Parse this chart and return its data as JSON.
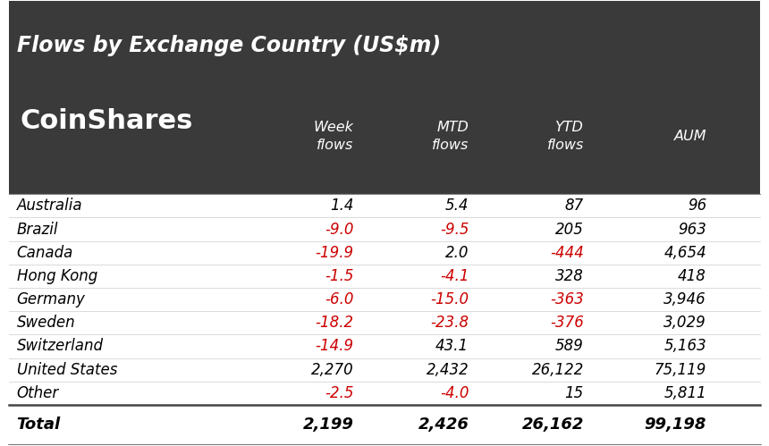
{
  "title": "Flows by Exchange Country (US$m)",
  "logo_text": "CoinShares",
  "header_bg": "#3a3a3a",
  "header_text_color": "#ffffff",
  "body_bg": "#ffffff",
  "body_text_color": "#000000",
  "negative_color": "#cc0000",
  "rows": [
    {
      "country": "Australia",
      "week": "1.4",
      "mtd": "5.4",
      "ytd": "87",
      "aum": "96",
      "week_neg": false,
      "mtd_neg": false,
      "ytd_neg": false
    },
    {
      "country": "Brazil",
      "week": "-9.0",
      "mtd": "-9.5",
      "ytd": "205",
      "aum": "963",
      "week_neg": true,
      "mtd_neg": true,
      "ytd_neg": false
    },
    {
      "country": "Canada",
      "week": "-19.9",
      "mtd": "2.0",
      "ytd": "-444",
      "aum": "4,654",
      "week_neg": true,
      "mtd_neg": false,
      "ytd_neg": true
    },
    {
      "country": "Hong Kong",
      "week": "-1.5",
      "mtd": "-4.1",
      "ytd": "328",
      "aum": "418",
      "week_neg": true,
      "mtd_neg": true,
      "ytd_neg": false
    },
    {
      "country": "Germany",
      "week": "-6.0",
      "mtd": "-15.0",
      "ytd": "-363",
      "aum": "3,946",
      "week_neg": true,
      "mtd_neg": true,
      "ytd_neg": true
    },
    {
      "country": "Sweden",
      "week": "-18.2",
      "mtd": "-23.8",
      "ytd": "-376",
      "aum": "3,029",
      "week_neg": true,
      "mtd_neg": true,
      "ytd_neg": true
    },
    {
      "country": "Switzerland",
      "week": "-14.9",
      "mtd": "43.1",
      "ytd": "589",
      "aum": "5,163",
      "week_neg": true,
      "mtd_neg": false,
      "ytd_neg": false
    },
    {
      "country": "United States",
      "week": "2,270",
      "mtd": "2,432",
      "ytd": "26,122",
      "aum": "75,119",
      "week_neg": false,
      "mtd_neg": false,
      "ytd_neg": false
    },
    {
      "country": "Other",
      "week": "-2.5",
      "mtd": "-4.0",
      "ytd": "15",
      "aum": "5,811",
      "week_neg": true,
      "mtd_neg": true,
      "ytd_neg": false
    }
  ],
  "total": {
    "country": "Total",
    "week": "2,199",
    "mtd": "2,426",
    "ytd": "26,162",
    "aum": "99,198",
    "week_neg": false,
    "mtd_neg": false,
    "ytd_neg": false
  },
  "fig_width": 8.6,
  "fig_height": 4.99,
  "dpi": 100
}
